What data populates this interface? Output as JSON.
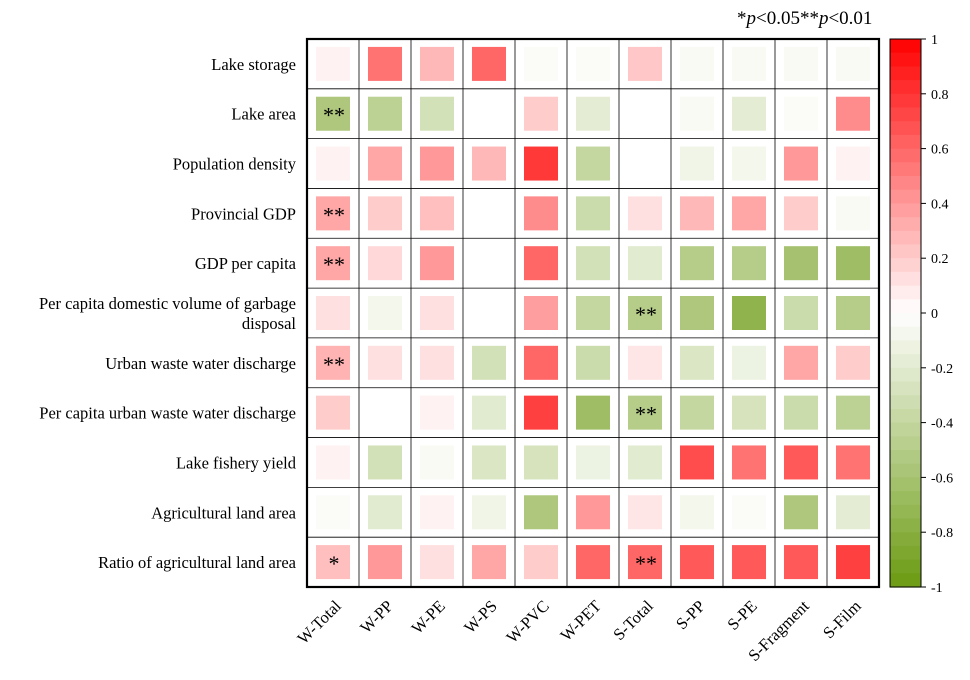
{
  "chart_data": {
    "type": "heatmap",
    "title": "",
    "significance_note": {
      "one_star": "*",
      "p1": "p",
      "t1": "<0.05",
      "two_star": "**",
      "p2": "p",
      "t2": "<0.01"
    },
    "columns": [
      "W-Total",
      "W-PP",
      "W-PE",
      "W-PS",
      "W-PVC",
      "W-PET",
      "S-Total",
      "S-PP",
      "S-PE",
      "S-Fragment",
      "S-Film"
    ],
    "rows": [
      "Lake storage",
      "Lake area",
      "Population density",
      "Provincial GDP",
      "GDP per capita",
      "Per capita domestic volume of garbage disposal",
      "Urban waste water discharge",
      "Per capita urban waste water discharge",
      "Lake fishery yield",
      "Agricultural land area",
      "Ratio of agricultural land area"
    ],
    "row_label_lines": [
      [
        "Lake storage"
      ],
      [
        "Lake area"
      ],
      [
        "Population density"
      ],
      [
        "Provincial GDP"
      ],
      [
        "GDP per capita"
      ],
      [
        "Per capita domestic volume of garbage",
        "disposal"
      ],
      [
        "Urban waste water discharge"
      ],
      [
        "Per capita urban waste water discharge"
      ],
      [
        "Lake fishery yield"
      ],
      [
        "Agricultural land area"
      ],
      [
        "Ratio of agricultural land area"
      ]
    ],
    "values": [
      [
        0.05,
        0.55,
        0.28,
        0.6,
        -0.03,
        -0.03,
        0.22,
        -0.05,
        -0.05,
        -0.05,
        -0.05
      ],
      [
        -0.55,
        -0.45,
        -0.3,
        null,
        0.2,
        -0.18,
        null,
        -0.05,
        -0.18,
        -0.03,
        0.45
      ],
      [
        0.05,
        0.35,
        0.4,
        0.28,
        0.78,
        -0.4,
        null,
        -0.1,
        -0.08,
        0.4,
        0.05
      ],
      [
        0.35,
        0.2,
        0.25,
        null,
        0.45,
        -0.35,
        0.12,
        0.28,
        0.35,
        0.2,
        -0.05
      ],
      [
        0.35,
        0.15,
        0.4,
        null,
        0.6,
        -0.3,
        -0.2,
        -0.5,
        -0.5,
        -0.6,
        -0.65
      ],
      [
        0.12,
        -0.08,
        0.12,
        null,
        0.38,
        -0.4,
        -0.5,
        -0.55,
        -0.75,
        -0.35,
        -0.5
      ],
      [
        0.3,
        0.12,
        0.12,
        -0.3,
        0.6,
        -0.35,
        0.1,
        -0.25,
        -0.12,
        0.35,
        0.2
      ],
      [
        0.2,
        null,
        0.05,
        -0.2,
        0.75,
        -0.65,
        -0.5,
        -0.4,
        -0.28,
        -0.35,
        -0.45
      ],
      [
        0.05,
        -0.3,
        -0.05,
        -0.25,
        -0.28,
        -0.12,
        -0.2,
        0.7,
        0.55,
        0.65,
        0.55
      ],
      [
        -0.03,
        -0.2,
        0.05,
        -0.1,
        -0.55,
        0.4,
        0.1,
        -0.08,
        -0.03,
        -0.55,
        -0.18
      ],
      [
        0.25,
        0.4,
        0.12,
        0.35,
        0.2,
        0.6,
        0.6,
        0.65,
        0.65,
        0.65,
        0.75
      ]
    ],
    "significance": [
      [
        "",
        "",
        "",
        "",
        "",
        "",
        "",
        "",
        "",
        "",
        ""
      ],
      [
        "**",
        "",
        "",
        "",
        "",
        "",
        "",
        "",
        "",
        "",
        ""
      ],
      [
        "",
        "",
        "",
        "",
        "",
        "",
        "",
        "",
        "",
        "",
        ""
      ],
      [
        "**",
        "",
        "",
        "",
        "",
        "",
        "",
        "",
        "",
        "",
        ""
      ],
      [
        "**",
        "",
        "",
        "",
        "",
        "",
        "",
        "",
        "",
        "",
        ""
      ],
      [
        "",
        "",
        "",
        "",
        "",
        "",
        "**",
        "",
        "",
        "",
        ""
      ],
      [
        "**",
        "",
        "",
        "",
        "",
        "",
        "",
        "",
        "",
        "",
        ""
      ],
      [
        "",
        "",
        "",
        "",
        "",
        "",
        "**",
        "",
        "",
        "",
        ""
      ],
      [
        "",
        "",
        "",
        "",
        "",
        "",
        "",
        "",
        "",
        "",
        ""
      ],
      [
        "",
        "",
        "",
        "",
        "",
        "",
        "",
        "",
        "",
        "",
        ""
      ],
      [
        "*",
        "",
        "",
        "",
        "",
        "",
        "**",
        "",
        "",
        "",
        ""
      ]
    ],
    "colorbar": {
      "range": [
        -1,
        1
      ],
      "ticks": [
        "1",
        "0.8",
        "0.6",
        "0.4",
        "0.2",
        "0",
        "-0.2",
        "-0.4",
        "-0.6",
        "-0.8",
        "-1"
      ],
      "tick_values": [
        1,
        0.8,
        0.6,
        0.4,
        0.2,
        0,
        -0.2,
        -0.4,
        -0.6,
        -0.8,
        -1
      ],
      "positive_color": "#ff0000",
      "negative_color": "#6b9a12",
      "neutral_color": "#ffffff"
    }
  }
}
